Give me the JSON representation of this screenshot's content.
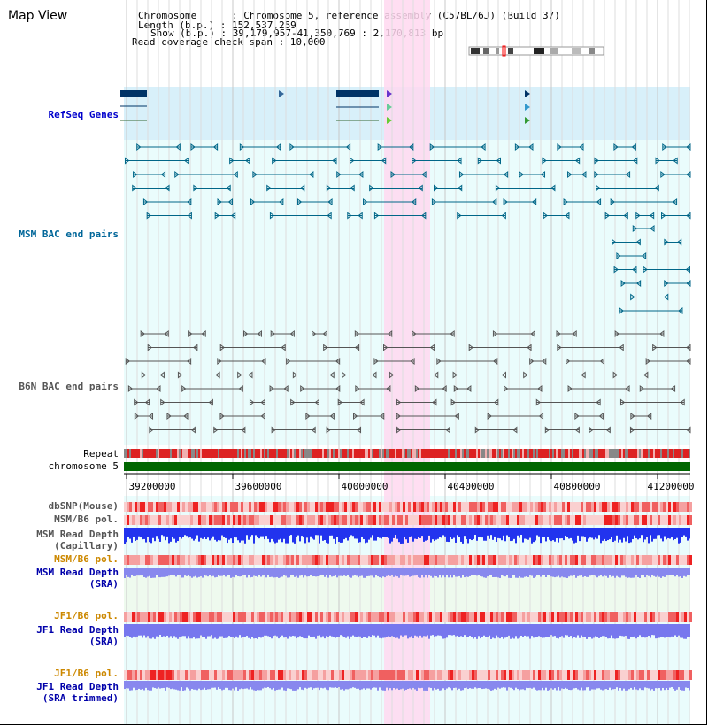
{
  "header": {
    "title": "Map View",
    "info_lines": [
      "Chromosome      : Chromosome 5, reference assembly (C57BL/6J) (Build 37)",
      "Length (b.p.) : 152,537,259",
      "Show (b.p.) : 39,179,957-41,350,769 : 2,170,813 bp",
      "Read coverage check span : 10,000"
    ]
  },
  "tracks": {
    "refseq": "RefSeq Genes",
    "msm_bac": "MSM BAC end pairs",
    "b6n_bac": "B6N BAC end pairs",
    "repeat": "Repeat",
    "chromosome": "chromosome 5",
    "dbsnp": "dbSNP(Mouse)",
    "msm_b6_pol": "MSM/B6 pol.",
    "msm_read_depth_cap": [
      "MSM Read Depth",
      "(Capillary)"
    ],
    "msm_b6_pol_sra": "MSM/B6 pol.",
    "msm_read_depth_sra": [
      "MSM Read Depth",
      "(SRA)"
    ],
    "jf1_b6_pol": "JF1/B6 pol.",
    "jf1_read_depth_sra": [
      "JF1 Read Depth",
      "(SRA)"
    ],
    "jf1_b6_pol_trim": "JF1/B6 pol.",
    "jf1_read_depth_trim": [
      "JF1 Read Depth",
      "(SRA trimmed)"
    ]
  },
  "axis": {
    "ticks": [
      "39200000",
      "39600000",
      "40000000",
      "40400000",
      "40800000",
      "41200000"
    ]
  },
  "colors": {
    "refseq_label": "#0000cc",
    "msm_label": "#006699",
    "b6n_label": "#555555",
    "jf1_label": "#cc8800",
    "depth_label": "#0000aa",
    "highlight": "#ffccee",
    "chromosome_bar": "#006600"
  }
}
